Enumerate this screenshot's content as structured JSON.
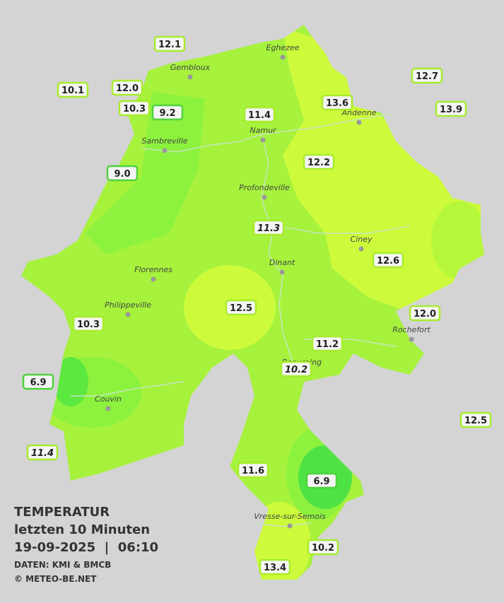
{
  "title": {
    "line1": "TEMPERATUR",
    "line2": "letzten 10 Minuten",
    "line3": "19-09-2025  |  06:10",
    "source": "DATEN: KMI & BMCB",
    "copyright": "© METEO-BE.NET"
  },
  "towns": [
    "Eghezee",
    "Gembloux",
    "Andenne",
    "Namur",
    "Sambreville",
    "Profondeville",
    "Ciney",
    "Dinant",
    "Florennes",
    "Philippeville",
    "Rochefort",
    "Beauraing",
    "Couvin",
    "Vresse-sur-Semois"
  ],
  "stations": [
    {
      "label": "12.1",
      "italic": false
    },
    {
      "label": "12.7",
      "italic": false
    },
    {
      "label": "10.1",
      "italic": false
    },
    {
      "label": "12.0",
      "italic": false
    },
    {
      "label": "10.3",
      "italic": false
    },
    {
      "label": "9.2",
      "italic": false
    },
    {
      "label": "11.4",
      "italic": false
    },
    {
      "label": "13.6",
      "italic": false
    },
    {
      "label": "13.9",
      "italic": false
    },
    {
      "label": "9.0",
      "italic": false
    },
    {
      "label": "12.2",
      "italic": false
    },
    {
      "label": "11.3",
      "italic": true
    },
    {
      "label": "12.6",
      "italic": false
    },
    {
      "label": "12.5",
      "italic": false
    },
    {
      "label": "12.0",
      "italic": false
    },
    {
      "label": "10.3",
      "italic": false
    },
    {
      "label": "11.2",
      "italic": false
    },
    {
      "label": "10.2",
      "italic": true
    },
    {
      "label": "6.9",
      "italic": false
    },
    {
      "label": "12.5",
      "italic": false
    },
    {
      "label": "11.4",
      "italic": true
    },
    {
      "label": "11.6",
      "italic": false
    },
    {
      "label": "6.9",
      "italic": false
    },
    {
      "label": "10.2",
      "italic": false
    },
    {
      "label": "13.4",
      "italic": false
    }
  ]
}
